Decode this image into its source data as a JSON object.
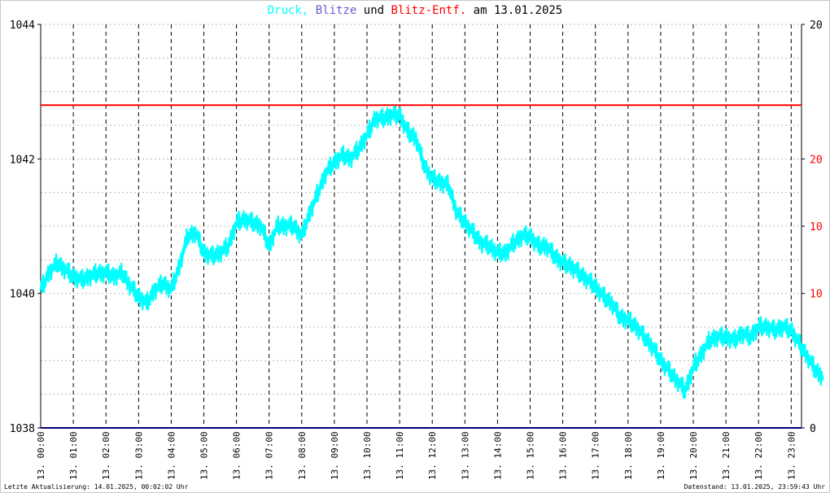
{
  "title": {
    "druck": "Druck,",
    "blitze": "Blitze",
    "und": "und",
    "blitz_entf": "Blitz-Entf.",
    "am": "am",
    "date": "13.01.2025"
  },
  "colors": {
    "druck": "#00ffff",
    "blitze": "#6a5acd",
    "blitz_entf": "#ff0000",
    "text": "#000000",
    "grid": "#000000",
    "baseline": "#000080"
  },
  "footer": {
    "left": "Letzte Aktualisierung: 14.01.2025, 00:02:02 Uhr",
    "right": "Datenstand: 13.01.2025, 23:59:43 Uhr"
  },
  "chart_data": {
    "type": "line",
    "title": "Druck, Blitze und Blitz-Entf. am 13.01.2025",
    "x_tick_labels": [
      "13. 00:00",
      "13. 01:00",
      "13. 02:00",
      "13. 03:00",
      "13. 04:00",
      "13. 05:00",
      "13. 06:00",
      "13. 07:00",
      "13. 08:00",
      "13. 09:00",
      "13. 10:00",
      "13. 11:00",
      "13. 12:00",
      "13. 13:00",
      "13. 14:00",
      "13. 15:00",
      "13. 16:00",
      "13. 17:00",
      "13. 18:00",
      "13. 19:00",
      "13. 20:00",
      "13. 21:00",
      "13. 22:00",
      "13. 23:00"
    ],
    "xlim_hours": [
      0,
      23.98
    ],
    "y_left": {
      "ylim": [
        1038,
        1044
      ],
      "tick_labels": [
        "1038",
        "1040",
        "1042",
        "1044"
      ],
      "ticks": [
        1038,
        1040,
        1042,
        1044
      ]
    },
    "y_right_top": {
      "tick_labels": [
        "20"
      ],
      "ticks": [
        1044
      ]
    },
    "y_right_dist": {
      "tick_labels": [
        "20",
        "10",
        "10"
      ],
      "ticks": [
        1042,
        1041,
        1040
      ]
    },
    "y_right_bottom": {
      "tick_labels": [
        "0"
      ],
      "ticks": [
        1038
      ]
    },
    "grid": "dashed vertical at each hour, dotted horizontal",
    "series": [
      {
        "name": "Druck",
        "color": "#00ffff",
        "x_hours": [
          0,
          0.25,
          0.5,
          0.75,
          1,
          1.25,
          1.5,
          1.75,
          2,
          2.25,
          2.5,
          2.75,
          3,
          3.25,
          3.5,
          3.75,
          4,
          4.25,
          4.5,
          4.75,
          5,
          5.25,
          5.5,
          5.75,
          6,
          6.25,
          6.5,
          6.75,
          7,
          7.25,
          7.5,
          7.75,
          8,
          8.25,
          8.5,
          8.75,
          9,
          9.25,
          9.5,
          9.75,
          10,
          10.25,
          10.5,
          10.75,
          11,
          11.25,
          11.5,
          11.75,
          12,
          12.25,
          12.5,
          12.75,
          13,
          13.25,
          13.5,
          13.75,
          14,
          14.25,
          14.5,
          14.75,
          15,
          15.25,
          15.5,
          15.75,
          16,
          16.25,
          16.5,
          16.75,
          17,
          17.25,
          17.5,
          17.75,
          18,
          18.25,
          18.5,
          18.75,
          19,
          19.25,
          19.5,
          19.75,
          20,
          20.25,
          20.5,
          20.75,
          21,
          21.25,
          21.5,
          21.75,
          22,
          22.25,
          22.5,
          22.75,
          23,
          23.25,
          23.5,
          23.75,
          23.98
        ],
        "values": [
          1040.05,
          1040.3,
          1040.45,
          1040.35,
          1040.25,
          1040.2,
          1040.25,
          1040.3,
          1040.3,
          1040.25,
          1040.3,
          1040.1,
          1039.95,
          1039.85,
          1040.05,
          1040.15,
          1040.05,
          1040.4,
          1040.85,
          1040.9,
          1040.6,
          1040.55,
          1040.6,
          1040.7,
          1041.05,
          1041.1,
          1041.05,
          1041.0,
          1040.7,
          1041.0,
          1041.0,
          1041.0,
          1040.85,
          1041.2,
          1041.5,
          1041.8,
          1041.95,
          1042.05,
          1042.0,
          1042.15,
          1042.35,
          1042.6,
          1042.6,
          1042.65,
          1042.65,
          1042.4,
          1042.3,
          1041.9,
          1041.7,
          1041.65,
          1041.6,
          1041.2,
          1041.05,
          1040.9,
          1040.75,
          1040.7,
          1040.6,
          1040.6,
          1040.75,
          1040.85,
          1040.85,
          1040.7,
          1040.7,
          1040.55,
          1040.45,
          1040.4,
          1040.3,
          1040.2,
          1040.1,
          1039.95,
          1039.85,
          1039.65,
          1039.6,
          1039.5,
          1039.35,
          1039.2,
          1039.0,
          1038.85,
          1038.7,
          1038.55,
          1038.9,
          1039.1,
          1039.3,
          1039.35,
          1039.35,
          1039.3,
          1039.4,
          1039.35,
          1039.5,
          1039.5,
          1039.45,
          1039.5,
          1039.45,
          1039.25,
          1039.05,
          1038.85,
          1038.75
        ]
      },
      {
        "name": "Blitz-Entf.",
        "color": "#ff0000",
        "x_hours": [
          0,
          23.98
        ],
        "values": [
          1042.8,
          1042.8
        ]
      },
      {
        "name": "Blitze",
        "color": "#000080",
        "x_hours": [
          0,
          23.98
        ],
        "values": [
          1038,
          1038
        ]
      }
    ]
  }
}
